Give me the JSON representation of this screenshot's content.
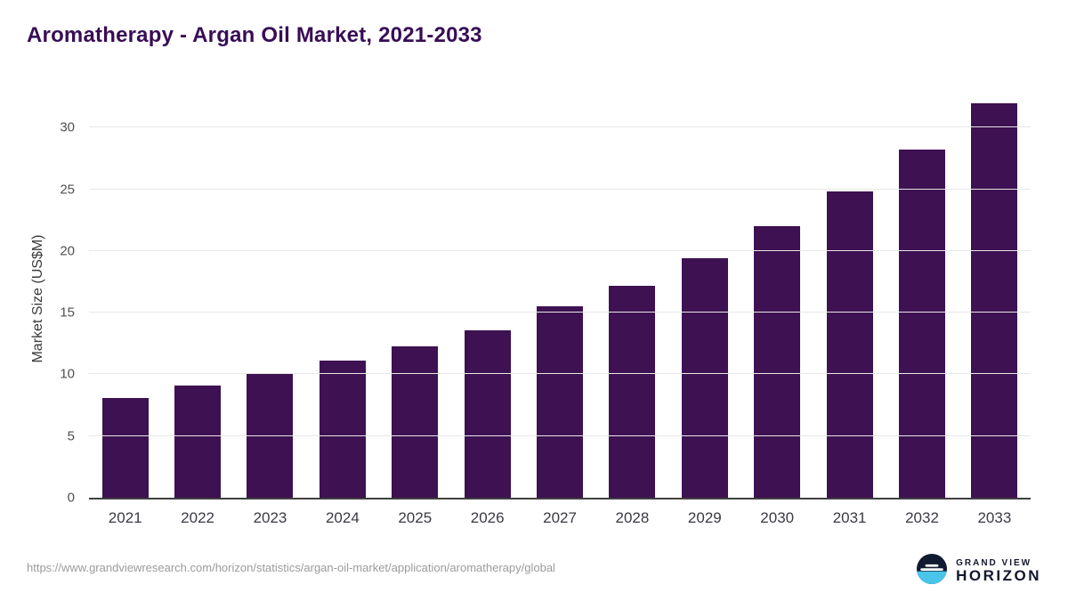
{
  "page": {
    "title": "Aromatherapy - Argan Oil Market, 2021-2033"
  },
  "chart_data": {
    "type": "bar",
    "title": "Aromatherapy - Argan Oil Market, 2021-2033",
    "xlabel": "",
    "ylabel": "Market Size (US$M)",
    "categories": [
      "2021",
      "2022",
      "2023",
      "2024",
      "2025",
      "2026",
      "2027",
      "2028",
      "2029",
      "2030",
      "2031",
      "2032",
      "2033"
    ],
    "values": [
      8.1,
      9.1,
      10.0,
      11.1,
      12.3,
      13.6,
      15.5,
      17.2,
      19.4,
      22.0,
      24.8,
      28.2,
      32.0
    ],
    "yticks": [
      0,
      5,
      10,
      15,
      20,
      25,
      30
    ],
    "ylim": [
      0,
      32.4
    ],
    "grid": true,
    "legend": false,
    "bar_color": "#3e1152",
    "title_color": "#380d56",
    "gridline_color": "#e7e7e7"
  },
  "footer": {
    "source_url": "https://www.grandviewresearch.com/horizon/statistics/argan-oil-market/application/aromatherapy/global",
    "brand": {
      "line1": "GRAND VIEW",
      "line2": "HORIZON"
    }
  }
}
